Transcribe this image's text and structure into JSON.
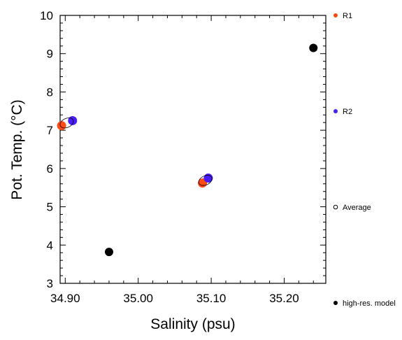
{
  "chart_data": {
    "type": "scatter",
    "title": "",
    "xlabel": "Salinity (psu)",
    "ylabel": "Pot. Temp. (°C)",
    "xlim": [
      34.893,
      35.257
    ],
    "ylim": [
      3,
      10
    ],
    "xticks": [
      34.9,
      35.0,
      35.1,
      35.2
    ],
    "xtick_labels": [
      "34.90",
      "35.00",
      "35.10",
      "35.20"
    ],
    "yticks": [
      3,
      4,
      5,
      6,
      7,
      8,
      9,
      10
    ],
    "ytick_labels": [
      "3",
      "4",
      "5",
      "6",
      "7",
      "8",
      "9",
      "10"
    ],
    "grid": false,
    "legend_position": "right",
    "series": [
      {
        "name": "R1",
        "color": "#ff4a14",
        "marker": "filled-circle",
        "points": [
          {
            "x": 34.895,
            "y": 7.12
          },
          {
            "x": 35.088,
            "y": 5.62
          }
        ]
      },
      {
        "name": "R2",
        "color": "#4a1cf5",
        "marker": "filled-circle",
        "points": [
          {
            "x": 34.91,
            "y": 7.25
          },
          {
            "x": 35.096,
            "y": 5.75
          }
        ]
      },
      {
        "name": "Average",
        "color": "#000000",
        "marker": "open-circle",
        "points": [
          {
            "x": 34.902,
            "y": 7.19
          },
          {
            "x": 35.092,
            "y": 5.69
          }
        ]
      },
      {
        "name": "high-res. model",
        "color": "#000000",
        "marker": "filled-circle",
        "points": [
          {
            "x": 34.96,
            "y": 3.82
          },
          {
            "x": 35.24,
            "y": 9.15
          }
        ]
      }
    ]
  }
}
